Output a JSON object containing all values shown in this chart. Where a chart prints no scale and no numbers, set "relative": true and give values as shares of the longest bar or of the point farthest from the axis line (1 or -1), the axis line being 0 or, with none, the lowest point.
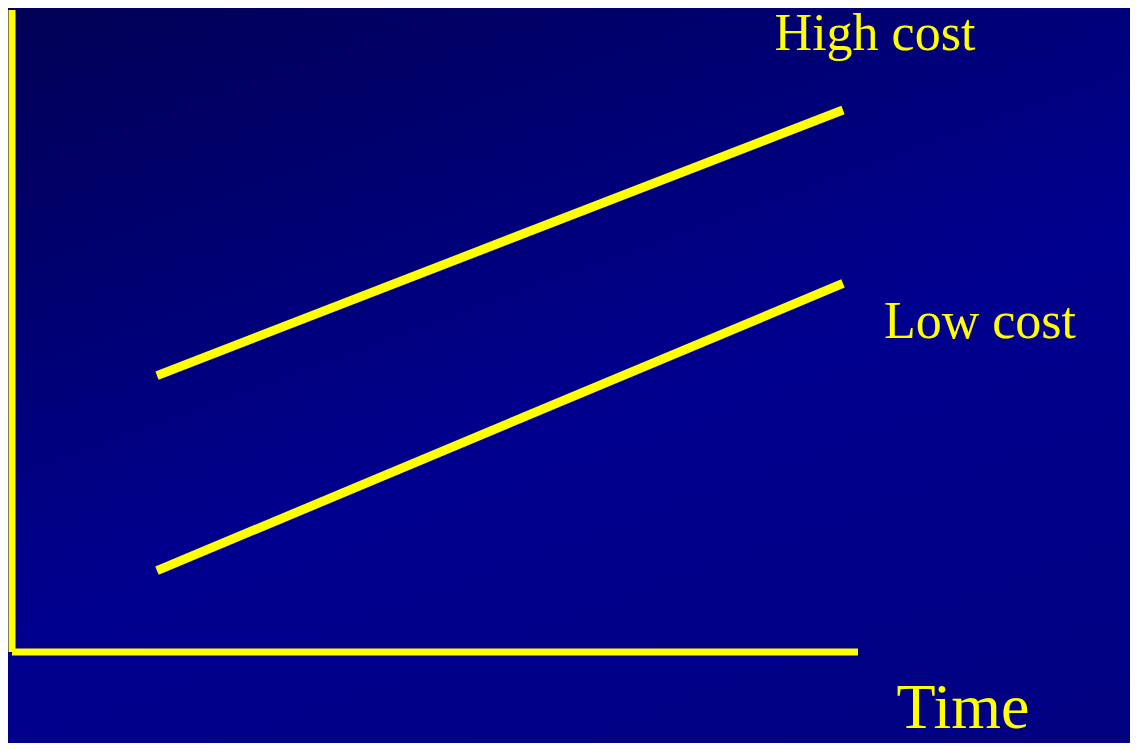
{
  "chart_data": {
    "type": "line",
    "relative": true,
    "xlabel": "Time",
    "categories": [
      null,
      null
    ],
    "series": [
      {
        "name": "High cost",
        "color": "#ffff00",
        "values": [
          0.51,
          1
        ]
      },
      {
        "name": "Low cost",
        "color": "#ffff00",
        "values": [
          0.15,
          0.68
        ]
      }
    ],
    "grid": false,
    "legend": false,
    "marker": "none",
    "line_style": "solid"
  }
}
